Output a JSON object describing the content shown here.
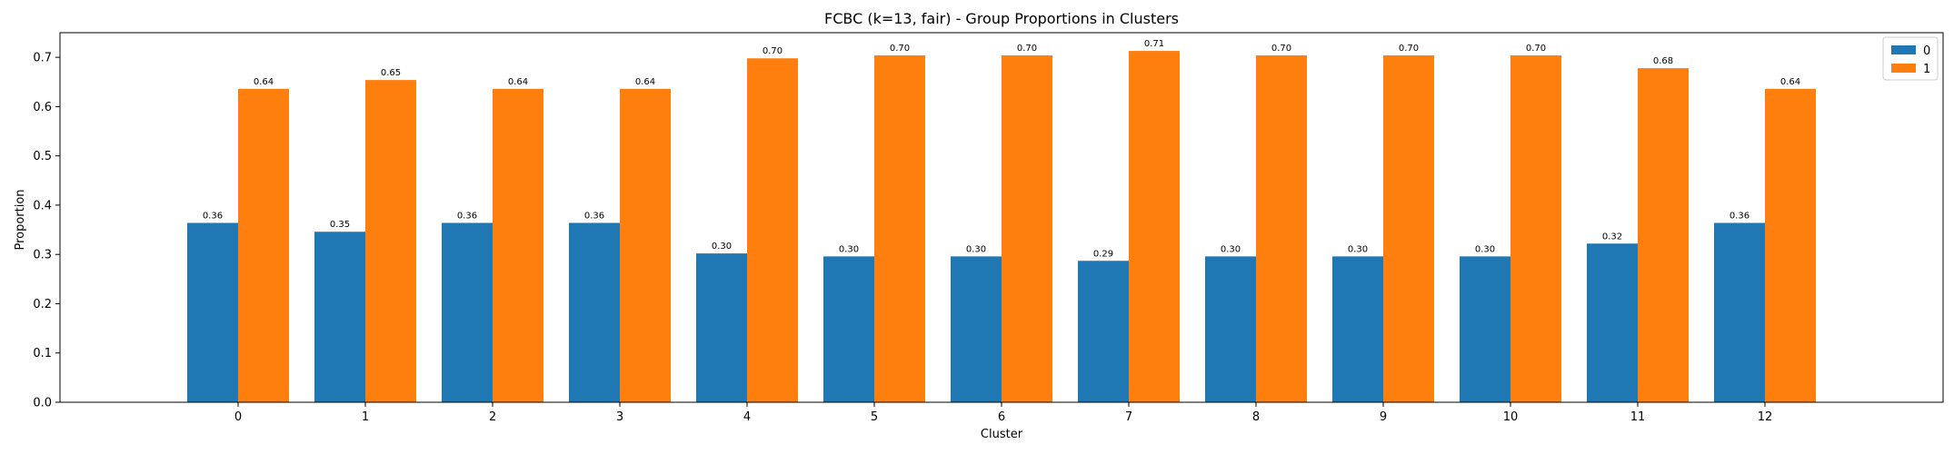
{
  "chart_data": {
    "type": "bar",
    "title": "FCBC (k=13, fair) - Group Proportions in Clusters",
    "xlabel": "Cluster",
    "ylabel": "Proportion",
    "categories": [
      "0",
      "1",
      "2",
      "3",
      "4",
      "5",
      "6",
      "7",
      "8",
      "9",
      "10",
      "11",
      "12"
    ],
    "series": [
      {
        "name": "0",
        "color": "#1f77b4",
        "values": [
          0.364,
          0.346,
          0.364,
          0.364,
          0.302,
          0.296,
          0.296,
          0.287,
          0.296,
          0.296,
          0.296,
          0.322,
          0.364
        ],
        "labels": [
          "0.36",
          "0.35",
          "0.36",
          "0.36",
          "0.30",
          "0.30",
          "0.30",
          "0.29",
          "0.30",
          "0.30",
          "0.30",
          "0.32",
          "0.36"
        ]
      },
      {
        "name": "1",
        "color": "#ff7f0e",
        "values": [
          0.636,
          0.654,
          0.636,
          0.636,
          0.698,
          0.704,
          0.704,
          0.713,
          0.704,
          0.704,
          0.704,
          0.678,
          0.636
        ],
        "labels": [
          "0.64",
          "0.65",
          "0.64",
          "0.64",
          "0.70",
          "0.70",
          "0.70",
          "0.71",
          "0.70",
          "0.70",
          "0.70",
          "0.68",
          "0.64"
        ]
      }
    ],
    "ylim": [
      0,
      0.75
    ],
    "yticks": [
      0.0,
      0.1,
      0.2,
      0.3,
      0.4,
      0.5,
      0.6,
      0.7
    ],
    "ytick_labels": [
      "0.0",
      "0.1",
      "0.2",
      "0.3",
      "0.4",
      "0.5",
      "0.6",
      "0.7"
    ],
    "grid": false,
    "legend": "top-right"
  }
}
